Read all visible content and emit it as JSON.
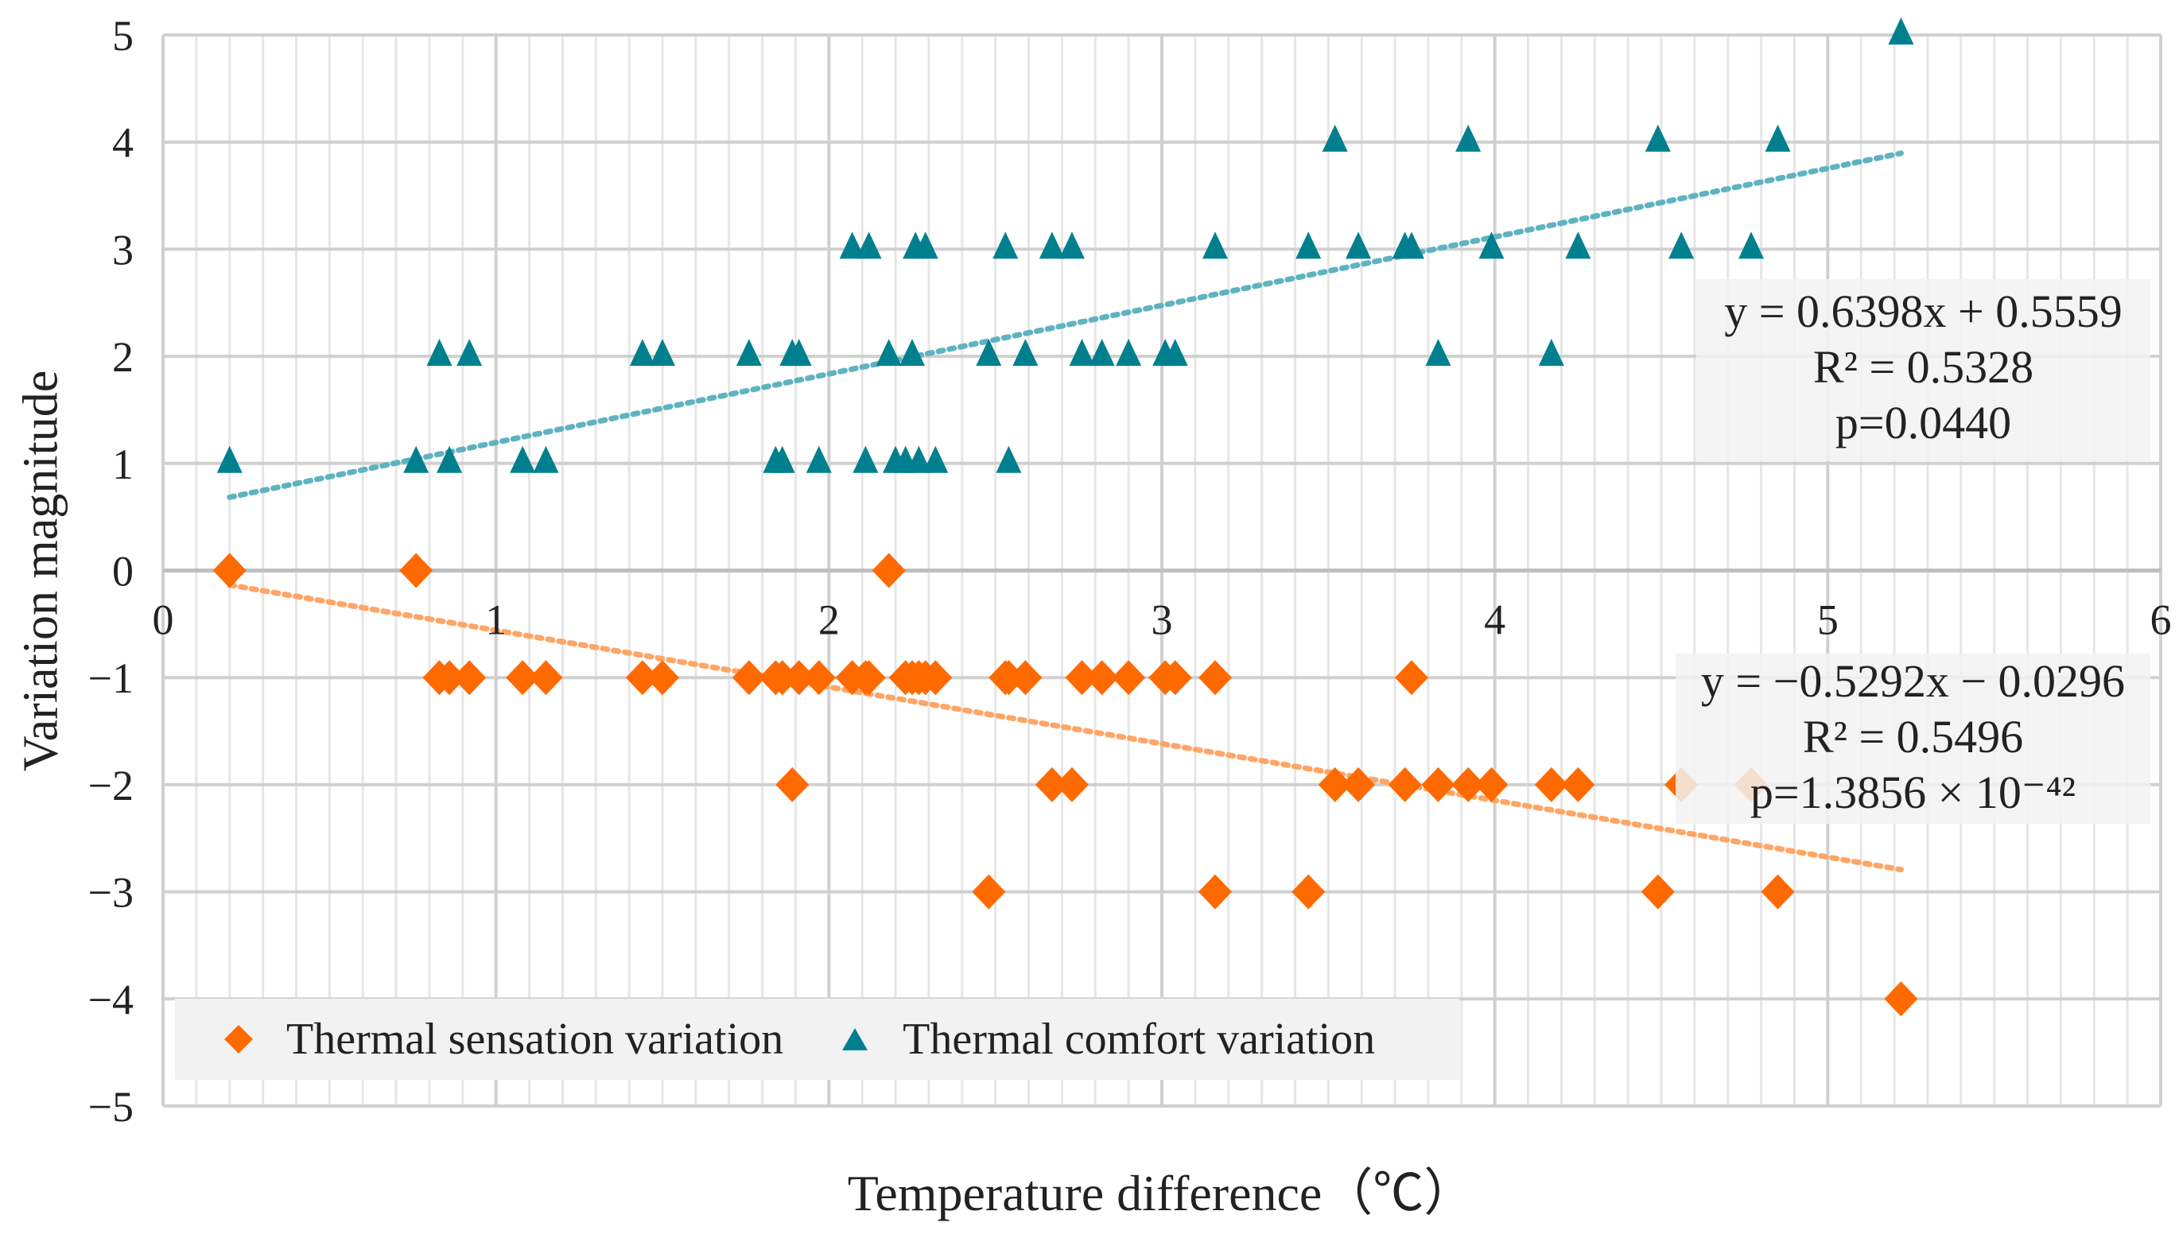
{
  "chart_data": {
    "type": "scatter",
    "xlabel": "Temperature difference（℃）",
    "ylabel": "Variation magnitude",
    "xlim": [
      0,
      6
    ],
    "ylim": [
      -5,
      5
    ],
    "x_ticks": [
      "0",
      "1",
      "2",
      "3",
      "4",
      "5",
      "6"
    ],
    "y_ticks": [
      "5",
      "4",
      "3",
      "2",
      "1",
      "0",
      "−1",
      "−2",
      "−3",
      "−4",
      "−5"
    ],
    "grid": true,
    "legend_position": "bottom-left",
    "series": [
      {
        "name": "Thermal sensation variation",
        "marker": "diamond",
        "color": "#FF6A00",
        "trend_color": "#FFA566",
        "trendline": {
          "slope": -0.5292,
          "intercept": -0.0296,
          "x_range": [
            0.2,
            5.22
          ]
        },
        "annotation": [
          "y = −0.5292x − 0.0296",
          "R² = 0.5496",
          "p=1.3856 × 10⁻⁴²"
        ],
        "points": [
          [
            0.2,
            0
          ],
          [
            0.76,
            0
          ],
          [
            2.18,
            0
          ],
          [
            0.83,
            -1
          ],
          [
            0.86,
            -1
          ],
          [
            0.92,
            -1
          ],
          [
            1.08,
            -1
          ],
          [
            1.15,
            -1
          ],
          [
            1.44,
            -1
          ],
          [
            1.5,
            -1
          ],
          [
            1.76,
            -1
          ],
          [
            1.84,
            -1
          ],
          [
            1.86,
            -1
          ],
          [
            1.91,
            -1
          ],
          [
            1.97,
            -1
          ],
          [
            2.07,
            -1
          ],
          [
            2.11,
            -1
          ],
          [
            2.12,
            -1
          ],
          [
            2.23,
            -1
          ],
          [
            2.25,
            -1
          ],
          [
            2.27,
            -1
          ],
          [
            2.29,
            -1
          ],
          [
            2.32,
            -1
          ],
          [
            2.53,
            -1
          ],
          [
            2.54,
            -1
          ],
          [
            2.59,
            -1
          ],
          [
            2.76,
            -1
          ],
          [
            2.82,
            -1
          ],
          [
            2.9,
            -1
          ],
          [
            3.01,
            -1
          ],
          [
            3.04,
            -1
          ],
          [
            3.16,
            -1
          ],
          [
            3.75,
            -1
          ],
          [
            1.89,
            -2
          ],
          [
            2.67,
            -2
          ],
          [
            2.73,
            -2
          ],
          [
            3.52,
            -2
          ],
          [
            3.59,
            -2
          ],
          [
            3.73,
            -2
          ],
          [
            3.83,
            -2
          ],
          [
            3.92,
            -2
          ],
          [
            3.99,
            -2
          ],
          [
            4.17,
            -2
          ],
          [
            4.25,
            -2
          ],
          [
            4.56,
            -2
          ],
          [
            4.77,
            -2
          ],
          [
            2.48,
            -3
          ],
          [
            3.16,
            -3
          ],
          [
            3.44,
            -3
          ],
          [
            4.49,
            -3
          ],
          [
            4.85,
            -3
          ],
          [
            5.22,
            -4
          ]
        ]
      },
      {
        "name": "Thermal comfort variation",
        "marker": "triangle",
        "color": "#00808F",
        "trend_color": "#5FB3C1",
        "trendline": {
          "slope": 0.6398,
          "intercept": 0.5559,
          "x_range": [
            0.2,
            5.22
          ]
        },
        "annotation": [
          "y = 0.6398x + 0.5559",
          "R² = 0.5328",
          "p=0.0440"
        ],
        "points": [
          [
            5.22,
            5
          ],
          [
            3.52,
            4
          ],
          [
            3.92,
            4
          ],
          [
            4.49,
            4
          ],
          [
            4.85,
            4
          ],
          [
            2.07,
            3
          ],
          [
            2.12,
            3
          ],
          [
            2.26,
            3
          ],
          [
            2.29,
            3
          ],
          [
            2.53,
            3
          ],
          [
            2.67,
            3
          ],
          [
            2.73,
            3
          ],
          [
            3.16,
            3
          ],
          [
            3.44,
            3
          ],
          [
            3.59,
            3
          ],
          [
            3.73,
            3
          ],
          [
            3.75,
            3
          ],
          [
            3.99,
            3
          ],
          [
            4.25,
            3
          ],
          [
            4.56,
            3
          ],
          [
            4.77,
            3
          ],
          [
            0.83,
            2
          ],
          [
            0.92,
            2
          ],
          [
            1.44,
            2
          ],
          [
            1.5,
            2
          ],
          [
            1.76,
            2
          ],
          [
            1.89,
            2
          ],
          [
            1.91,
            2
          ],
          [
            2.18,
            2
          ],
          [
            2.25,
            2
          ],
          [
            2.48,
            2
          ],
          [
            2.59,
            2
          ],
          [
            2.76,
            2
          ],
          [
            2.82,
            2
          ],
          [
            2.9,
            2
          ],
          [
            3.01,
            2
          ],
          [
            3.04,
            2
          ],
          [
            3.83,
            2
          ],
          [
            4.17,
            2
          ],
          [
            0.2,
            1
          ],
          [
            0.76,
            1
          ],
          [
            0.86,
            1
          ],
          [
            1.08,
            1
          ],
          [
            1.15,
            1
          ],
          [
            1.84,
            1
          ],
          [
            1.86,
            1
          ],
          [
            1.97,
            1
          ],
          [
            2.11,
            1
          ],
          [
            2.2,
            1
          ],
          [
            2.23,
            1
          ],
          [
            2.27,
            1
          ],
          [
            2.32,
            1
          ],
          [
            2.54,
            1
          ]
        ]
      }
    ]
  }
}
